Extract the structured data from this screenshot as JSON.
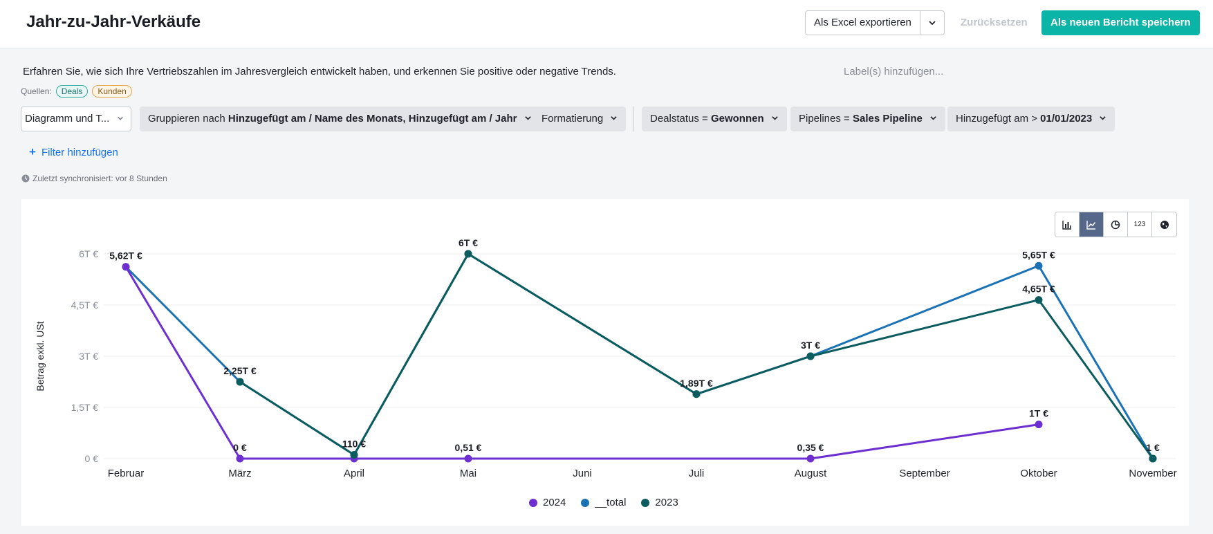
{
  "header": {
    "title": "Jahr-zu-Jahr-Verkäufe",
    "export_label": "Als Excel exportieren",
    "reset_label": "Zurücksetzen",
    "save_label": "Als neuen Bericht speichern"
  },
  "description": "Erfahren Sie, wie sich Ihre Vertriebszahlen im Jahresvergleich entwickelt haben, und erkennen Sie positive oder negative Trends.",
  "label_placeholder": "Label(s) hinzufügen...",
  "sources": {
    "label": "Quellen:",
    "deals": "Deals",
    "kunden": "Kunden"
  },
  "toolbar": {
    "view_select": "Diagramm und T...",
    "group_prefix": "Gruppieren nach",
    "group_value": "Hinzugefügt am / Name des Monats, Hinzugefügt am / Jahr",
    "format_label": "Formatierung",
    "status_prefix": "Dealstatus =",
    "status_value": "Gewonnen",
    "pipeline_prefix": "Pipelines =",
    "pipeline_value": "Sales Pipeline",
    "added_prefix": "Hinzugefügt am >",
    "added_value": "01/01/2023"
  },
  "filter_add_label": "Filter hinzufügen",
  "sync_text": "Zuletzt synchronisiert: vor 8 Stunden",
  "colors": {
    "s2024": "#6d2fd0",
    "total": "#1a72b5",
    "s2023": "#0a5c5e",
    "accent": "#0ab5a8",
    "link": "#1a73e8"
  },
  "chart_data": {
    "type": "line",
    "ylabel": "Betrag exkl. USt",
    "ylim": [
      0,
      6000
    ],
    "yticks": [
      0,
      1500,
      3000,
      4500,
      6000
    ],
    "ytick_labels": [
      "0 €",
      "1,5T €",
      "3T €",
      "4,5T €",
      "6T €"
    ],
    "categories": [
      "Februar",
      "März",
      "April",
      "Mai",
      "Juni",
      "Juli",
      "August",
      "September",
      "Oktober",
      "November"
    ],
    "legend_position": "bottom",
    "grid": true,
    "series": [
      {
        "name": "2024",
        "color": "#6d2fd0",
        "values": [
          5620,
          0,
          0,
          0.51,
          null,
          null,
          0.35,
          null,
          1000,
          null
        ]
      },
      {
        "name": "__total",
        "color": "#1a72b5",
        "values": [
          5620,
          2250,
          110,
          6000,
          null,
          1890,
          3000,
          null,
          5650,
          1
        ]
      },
      {
        "name": "2023",
        "color": "#0a5c5e",
        "values": [
          null,
          2250,
          110,
          6000,
          null,
          1890,
          3000,
          null,
          4650,
          1
        ]
      }
    ],
    "data_labels": [
      {
        "category": "Februar",
        "value": 5620,
        "text": "5,62T €"
      },
      {
        "category": "März",
        "value": 2250,
        "text": "2,25T €"
      },
      {
        "category": "März",
        "value": 0,
        "text": "0 €"
      },
      {
        "category": "April",
        "value": 110,
        "text": "110 €"
      },
      {
        "category": "Mai",
        "value": 6000,
        "text": "6T €"
      },
      {
        "category": "Mai",
        "value": 0.51,
        "text": "0,51 €"
      },
      {
        "category": "Juli",
        "value": 1890,
        "text": "1,89T €"
      },
      {
        "category": "August",
        "value": 3000,
        "text": "3T €"
      },
      {
        "category": "August",
        "value": 0.35,
        "text": "0,35 €"
      },
      {
        "category": "Oktober",
        "value": 5650,
        "text": "5,65T €"
      },
      {
        "category": "Oktober",
        "value": 4650,
        "text": "4,65T €"
      },
      {
        "category": "Oktober",
        "value": 1000,
        "text": "1T €"
      },
      {
        "category": "November",
        "value": 1,
        "text": "1 €"
      }
    ]
  }
}
